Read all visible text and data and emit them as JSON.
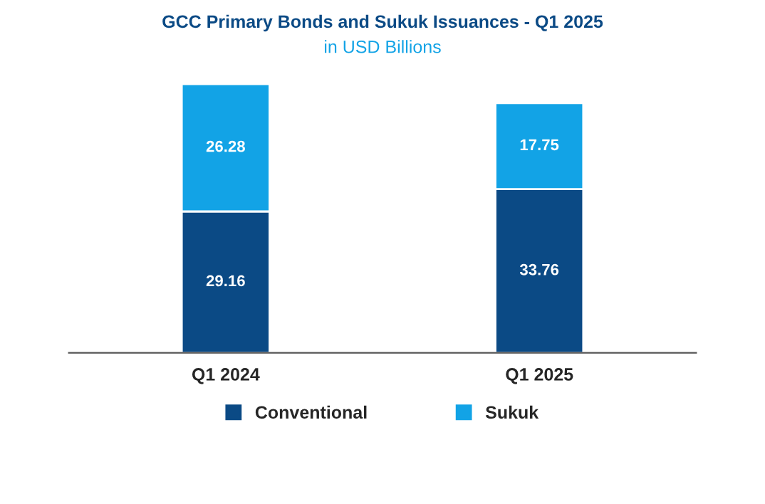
{
  "chart_data": {
    "type": "bar",
    "title": "GCC Primary Bonds and Sukuk Issuances - Q1 2025",
    "subtitle": "in USD Billions",
    "categories": [
      "Q1 2024",
      "Q1 2025"
    ],
    "stacked": true,
    "data_labels": true,
    "legend": "bottom",
    "grid": false,
    "series": [
      {
        "name": "Conventional",
        "color": "#0b4a85",
        "values": [
          29.16,
          33.76
        ]
      },
      {
        "name": "Sukuk",
        "color": "#12a3e6",
        "values": [
          26.28,
          17.75
        ]
      }
    ]
  }
}
